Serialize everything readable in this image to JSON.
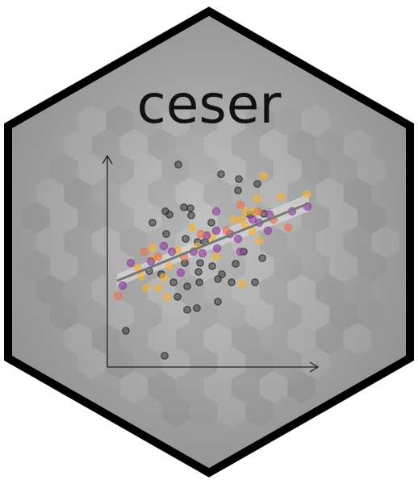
{
  "sticker": {
    "package_name": "ceser",
    "colors": {
      "border": "#000000",
      "fill_center": "#bdbdbd",
      "fill_edge": "#8f8f8f",
      "title": "#111111",
      "axis": "#222222",
      "trend_line": "#777777",
      "confidence_band": "#d9d9d9"
    },
    "plot": {
      "type": "scatter",
      "series_colors": [
        "#3a3a3a",
        "#f2b33a",
        "#8e3f9c",
        "#e8744f"
      ],
      "x_axis_arrow": true,
      "y_axis_arrow": true,
      "trend_line": true,
      "confidence_band": true,
      "hexbin_background": true
    }
  }
}
